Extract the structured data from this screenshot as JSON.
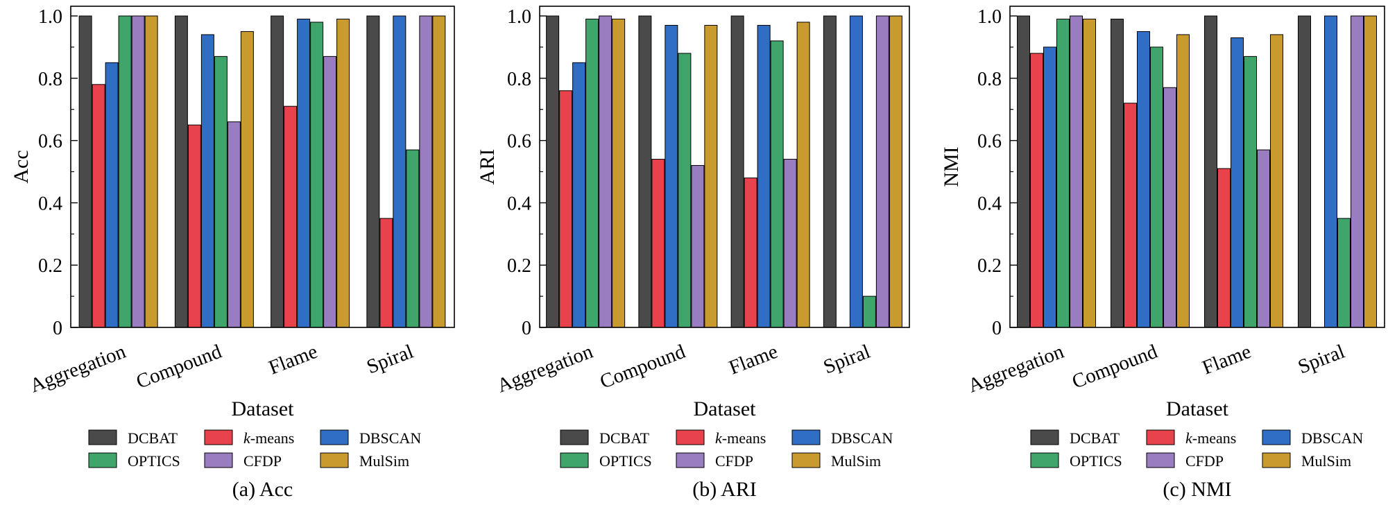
{
  "figure": {
    "legend_labels": [
      "DCBAT",
      "k-means",
      "DBSCAN",
      "OPTICS",
      "CFDP",
      "MulSim"
    ],
    "legend_emphasis": "k"
  },
  "chart_data": [
    {
      "type": "bar",
      "caption": "(a) Acc",
      "xlabel": "Dataset",
      "ylabel": "Acc",
      "ylim": [
        0,
        1.0
      ],
      "yticks": [
        "0",
        "0.2",
        "0.4",
        "0.6",
        "0.8",
        "1.0"
      ],
      "categories": [
        "Aggregation",
        "Compound",
        "Flame",
        "Spiral"
      ],
      "series": [
        {
          "name": "DCBAT",
          "color": "#4a4a4a",
          "values": [
            1.0,
            1.0,
            1.0,
            1.0
          ]
        },
        {
          "name": "k-means",
          "color": "#e8424c",
          "values": [
            0.78,
            0.65,
            0.71,
            0.35
          ]
        },
        {
          "name": "DBSCAN",
          "color": "#2f6ec4",
          "values": [
            0.85,
            0.94,
            0.99,
            1.0
          ]
        },
        {
          "name": "OPTICS",
          "color": "#3fa56b",
          "values": [
            1.0,
            0.87,
            0.98,
            0.57
          ]
        },
        {
          "name": "CFDP",
          "color": "#9a7cc0",
          "values": [
            1.0,
            0.66,
            0.87,
            1.0
          ]
        },
        {
          "name": "MulSim",
          "color": "#c99a2e",
          "values": [
            1.0,
            0.95,
            0.99,
            1.0
          ]
        }
      ]
    },
    {
      "type": "bar",
      "caption": "(b) ARI",
      "xlabel": "Dataset",
      "ylabel": "ARI",
      "ylim": [
        0,
        1.0
      ],
      "yticks": [
        "0",
        "0.2",
        "0.4",
        "0.6",
        "0.8",
        "1.0"
      ],
      "categories": [
        "Aggregation",
        "Compound",
        "Flame",
        "Spiral"
      ],
      "series": [
        {
          "name": "DCBAT",
          "color": "#4a4a4a",
          "values": [
            1.0,
            1.0,
            1.0,
            1.0
          ]
        },
        {
          "name": "k-means",
          "color": "#e8424c",
          "values": [
            0.76,
            0.54,
            0.48,
            0.0
          ]
        },
        {
          "name": "DBSCAN",
          "color": "#2f6ec4",
          "values": [
            0.85,
            0.97,
            0.97,
            1.0
          ]
        },
        {
          "name": "OPTICS",
          "color": "#3fa56b",
          "values": [
            0.99,
            0.88,
            0.92,
            0.1
          ]
        },
        {
          "name": "CFDP",
          "color": "#9a7cc0",
          "values": [
            1.0,
            0.52,
            0.54,
            1.0
          ]
        },
        {
          "name": "MulSim",
          "color": "#c99a2e",
          "values": [
            0.99,
            0.97,
            0.98,
            1.0
          ]
        }
      ]
    },
    {
      "type": "bar",
      "caption": "(c) NMI",
      "xlabel": "Dataset",
      "ylabel": "NMI",
      "ylim": [
        0,
        1.0
      ],
      "yticks": [
        "0",
        "0.2",
        "0.4",
        "0.6",
        "0.8",
        "1.0"
      ],
      "categories": [
        "Aggregation",
        "Compound",
        "Flame",
        "Spiral"
      ],
      "series": [
        {
          "name": "DCBAT",
          "color": "#4a4a4a",
          "values": [
            1.0,
            0.99,
            1.0,
            1.0
          ]
        },
        {
          "name": "k-means",
          "color": "#e8424c",
          "values": [
            0.88,
            0.72,
            0.51,
            0.0
          ]
        },
        {
          "name": "DBSCAN",
          "color": "#2f6ec4",
          "values": [
            0.9,
            0.95,
            0.93,
            1.0
          ]
        },
        {
          "name": "OPTICS",
          "color": "#3fa56b",
          "values": [
            0.99,
            0.9,
            0.87,
            0.35
          ]
        },
        {
          "name": "CFDP",
          "color": "#9a7cc0",
          "values": [
            1.0,
            0.77,
            0.57,
            1.0
          ]
        },
        {
          "name": "MulSim",
          "color": "#c99a2e",
          "values": [
            0.99,
            0.94,
            0.94,
            1.0
          ]
        }
      ]
    }
  ]
}
